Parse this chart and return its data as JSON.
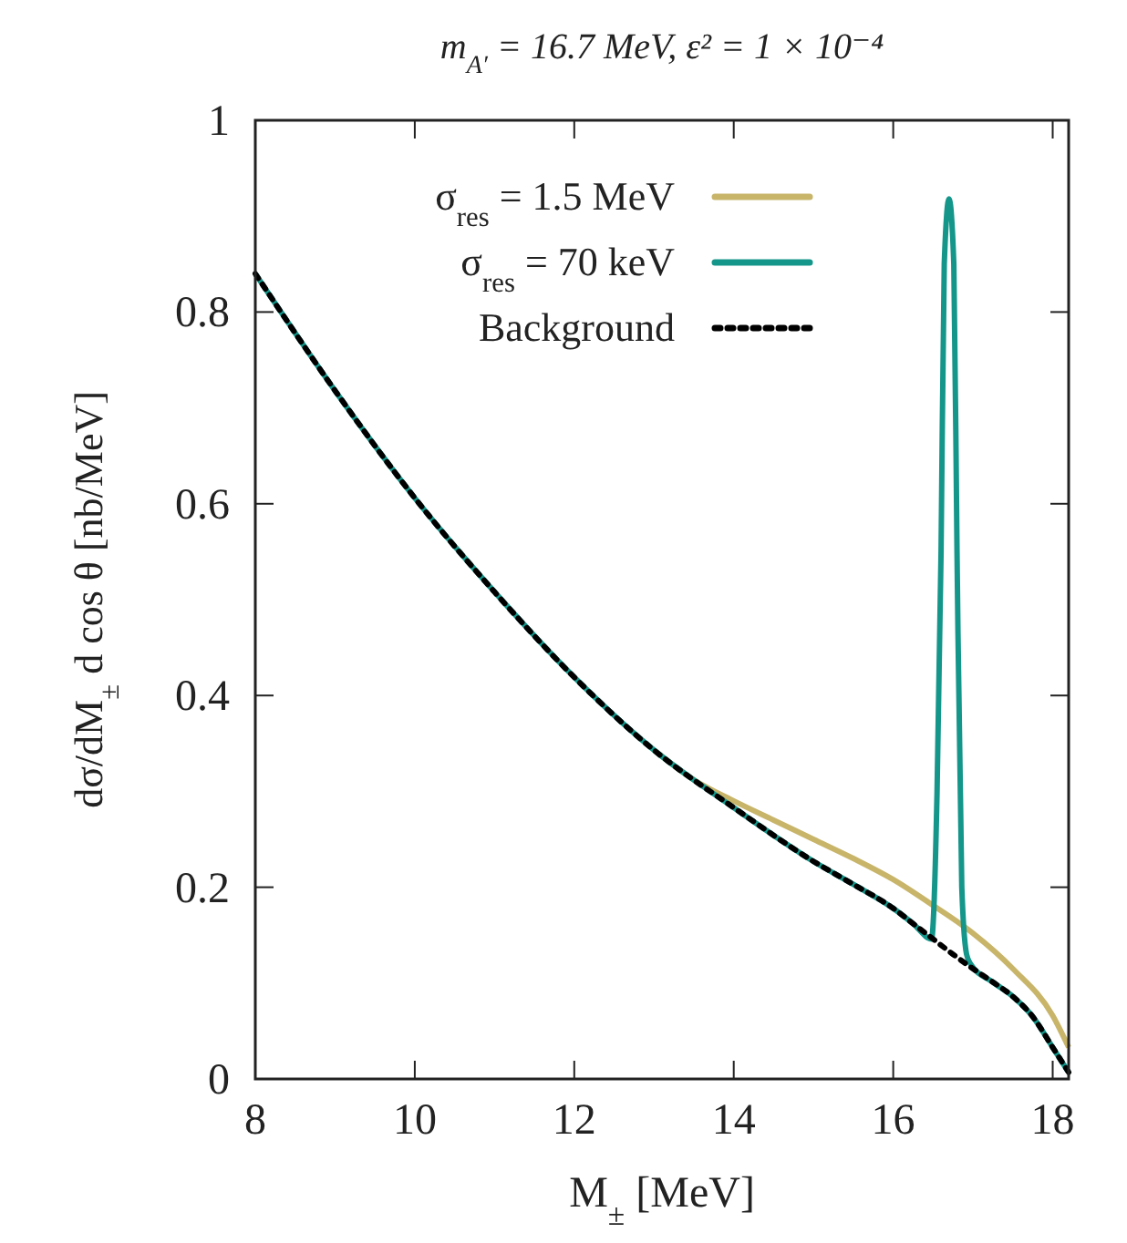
{
  "chart_data": {
    "type": "line",
    "title": "m$_{A′}$ = 16.7 MeV, ε² = 1 × 10⁻⁴",
    "xlabel": "M$_{±}$ [MeV]",
    "ylabel": "dσ/dM$_{±}$ d cos θ [nb/MeV]",
    "xlim": [
      8,
      18.2
    ],
    "xticks": [
      8,
      10,
      12,
      14,
      16,
      18
    ],
    "ylim": [
      0,
      1
    ],
    "yticks": [
      0,
      0.2,
      0.4,
      0.6,
      0.8,
      1
    ],
    "grid": false,
    "legend": "top left",
    "series": [
      {
        "name": "σ$_{res}$ = 1.5 MeV",
        "color": "#c8b56a",
        "line_style": "solid",
        "x": [
          13,
          13.5,
          14,
          14.5,
          15,
          15.5,
          16,
          16.5,
          17,
          17.5,
          18,
          18.2
        ],
        "values": [
          0.343,
          0.312,
          0.29,
          0.27,
          0.25,
          0.23,
          0.208,
          0.181,
          0.152,
          0.115,
          0.066,
          0.033
        ]
      },
      {
        "name": "σ$_{res}$ = 70 keV",
        "color": "#14968a",
        "line_style": "solid",
        "x": [
          8,
          9,
          10,
          11,
          12,
          13,
          14,
          15,
          15.5,
          16,
          16.25,
          16.48,
          16.55,
          16.6,
          16.64,
          16.7,
          16.76,
          16.8,
          16.86,
          16.92,
          16.97,
          17.25,
          17.5,
          17.75,
          18,
          18.2
        ],
        "values": [
          0.84,
          0.718,
          0.606,
          0.508,
          0.419,
          0.343,
          0.283,
          0.227,
          0.203,
          0.178,
          0.162,
          0.146,
          0.3,
          0.55,
          0.85,
          0.918,
          0.85,
          0.55,
          0.2,
          0.13,
          0.12,
          0.101,
          0.086,
          0.065,
          0.033,
          0.007
        ]
      },
      {
        "name": "Background",
        "color": "#000000",
        "line_style": "dotted",
        "x": [
          8,
          9,
          10,
          11,
          12,
          13,
          14,
          15,
          15.5,
          16,
          16.25,
          16.5,
          16.75,
          17,
          17.25,
          17.5,
          17.75,
          18,
          18.2
        ],
        "values": [
          0.84,
          0.718,
          0.606,
          0.508,
          0.419,
          0.343,
          0.283,
          0.227,
          0.203,
          0.178,
          0.162,
          0.146,
          0.13,
          0.115,
          0.101,
          0.086,
          0.065,
          0.033,
          0.007
        ]
      }
    ]
  }
}
